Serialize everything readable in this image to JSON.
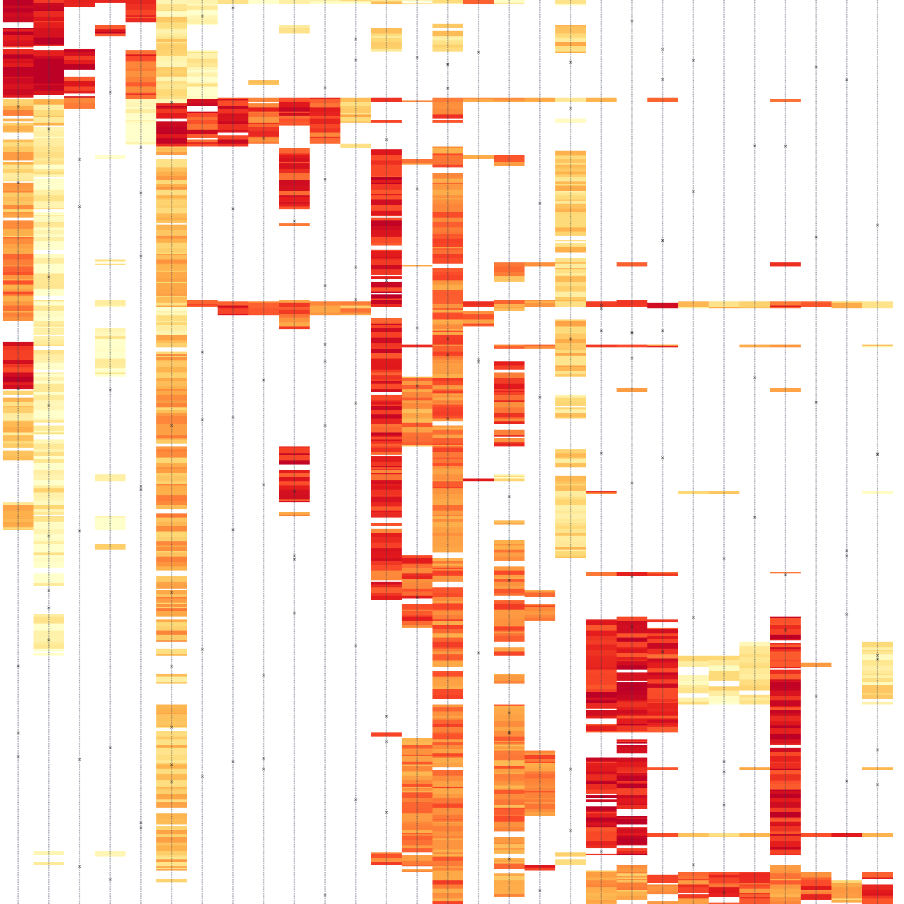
{
  "chart_data": {
    "type": "heatmap",
    "title": "",
    "xlabel": "",
    "ylabel": "",
    "legend": "none",
    "grid": false,
    "n_columns": 29,
    "n_rows": 648,
    "colormap": [
      "#ffffcc",
      "#ffeda0",
      "#fed976",
      "#feb24c",
      "#fd8d3c",
      "#fc4e2a",
      "#e31a1c",
      "#bd0026"
    ],
    "value_range": [
      0,
      1
    ],
    "empty_cell": "white",
    "column_line": "coverage line with x markers",
    "columns": [
      {
        "index": 1,
        "segments": [
          [
            0,
            68,
            0.92
          ],
          [
            70,
            140,
            0.95
          ],
          [
            142,
            180,
            0.45
          ],
          [
            180,
            190,
            0.5
          ],
          [
            196,
            230,
            0.35
          ],
          [
            232,
            260,
            0.3
          ],
          [
            262,
            340,
            0.45
          ],
          [
            340,
            460,
            0.55
          ],
          [
            490,
            560,
            0.85
          ],
          [
            560,
            660,
            0.3
          ],
          [
            720,
            760,
            0.35
          ]
        ]
      },
      {
        "index": 2,
        "segments": [
          [
            0,
            70,
            0.93
          ],
          [
            70,
            140,
            0.96
          ],
          [
            142,
            180,
            0.3
          ],
          [
            180,
            300,
            0.08
          ],
          [
            300,
            460,
            0.05
          ],
          [
            460,
            520,
            0.12
          ],
          [
            520,
            540,
            0.04
          ],
          [
            540,
            620,
            0.06
          ],
          [
            620,
            700,
            0.1
          ],
          [
            700,
            740,
            0.2
          ],
          [
            740,
            840,
            0.06
          ],
          [
            880,
            940,
            0.06
          ],
          [
            1220,
            1240,
            0.15
          ]
        ]
      },
      {
        "index": 3,
        "segments": [
          [
            0,
            10,
            0.9
          ],
          [
            70,
            100,
            0.88
          ],
          [
            110,
            140,
            0.82
          ],
          [
            140,
            156,
            0.6
          ]
        ]
      },
      {
        "index": 4,
        "segments": [
          [
            0,
            4,
            0.8
          ],
          [
            36,
            52,
            0.85
          ],
          [
            222,
            228,
            0.1
          ],
          [
            372,
            380,
            0.12
          ],
          [
            430,
            440,
            0.08
          ],
          [
            470,
            540,
            0.06
          ],
          [
            680,
            690,
            0.04
          ],
          [
            740,
            760,
            0.06
          ],
          [
            780,
            790,
            0.3
          ],
          [
            1220,
            1228,
            0.06
          ]
        ]
      },
      {
        "index": 5,
        "segments": [
          [
            0,
            32,
            0.7
          ],
          [
            72,
            142,
            0.72
          ],
          [
            142,
            208,
            0.04
          ]
        ]
      },
      {
        "index": 6,
        "segments": [
          [
            0,
            148,
            0.2
          ],
          [
            148,
            210,
            0.93
          ],
          [
            210,
            440,
            0.38
          ],
          [
            440,
            480,
            0.15
          ],
          [
            480,
            920,
            0.45
          ],
          [
            930,
            940,
            0.3
          ],
          [
            966,
            980,
            0.25
          ],
          [
            1010,
            1265,
            0.35
          ]
        ]
      },
      {
        "index": 7,
        "segments": [
          [
            0,
            36,
            0.12
          ],
          [
            72,
            142,
            0.08
          ],
          [
            142,
            210,
            0.8
          ],
          [
            430,
            440,
            0.65
          ]
        ]
      },
      {
        "index": 8,
        "segments": [
          [
            0,
            6,
            0.15
          ],
          [
            140,
            210,
            0.85
          ],
          [
            432,
            452,
            0.75
          ]
        ]
      },
      {
        "index": 9,
        "segments": [
          [
            0,
            6,
            0.12
          ],
          [
            115,
            122,
            0.3
          ],
          [
            140,
            206,
            0.7
          ],
          [
            432,
            452,
            0.6
          ]
        ]
      },
      {
        "index": 10,
        "segments": [
          [
            0,
            6,
            0.2
          ],
          [
            36,
            48,
            0.15
          ],
          [
            140,
            180,
            0.8
          ],
          [
            212,
            300,
            0.78
          ],
          [
            320,
            326,
            0.7
          ],
          [
            430,
            472,
            0.62
          ],
          [
            640,
            720,
            0.82
          ],
          [
            734,
            740,
            0.6
          ]
        ]
      },
      {
        "index": 11,
        "segments": [
          [
            0,
            6,
            0.1
          ],
          [
            140,
            206,
            0.75
          ],
          [
            432,
            452,
            0.55
          ]
        ]
      },
      {
        "index": 12,
        "segments": [
          [
            0,
            6,
            0.15
          ],
          [
            140,
            176,
            0.3
          ],
          [
            206,
            212,
            0.4
          ],
          [
            432,
            452,
            0.5
          ]
        ]
      },
      {
        "index": 13,
        "segments": [
          [
            0,
            6,
            0.3
          ],
          [
            40,
            74,
            0.3
          ],
          [
            140,
            146,
            0.65
          ],
          [
            170,
            176,
            0.7
          ],
          [
            210,
            440,
            0.85
          ],
          [
            456,
            640,
            0.8
          ],
          [
            640,
            860,
            0.75
          ],
          [
            1050,
            1056,
            0.6
          ],
          [
            1222,
            1240,
            0.7
          ]
        ]
      },
      {
        "index": 14,
        "segments": [
          [
            0,
            6,
            0.1
          ],
          [
            140,
            146,
            0.6
          ],
          [
            228,
            236,
            0.7
          ],
          [
            380,
            382,
            0.6
          ],
          [
            494,
            498,
            0.7
          ],
          [
            540,
            640,
            0.55
          ],
          [
            796,
            900,
            0.7
          ],
          [
            1050,
            1250,
            0.55
          ]
        ]
      },
      {
        "index": 15,
        "segments": [
          [
            0,
            6,
            0.2
          ],
          [
            34,
            74,
            0.25
          ],
          [
            140,
            176,
            0.65
          ],
          [
            210,
            1296,
            0.6
          ]
        ]
      },
      {
        "index": 16,
        "segments": [
          [
            0,
            6,
            0.5
          ],
          [
            140,
            146,
            0.45
          ],
          [
            222,
            228,
            0.5
          ],
          [
            432,
            468,
            0.65
          ],
          [
            686,
            690,
            0.85
          ]
        ]
      },
      {
        "index": 17,
        "segments": [
          [
            0,
            6,
            0.1
          ],
          [
            140,
            146,
            0.45
          ],
          [
            222,
            238,
            0.6
          ],
          [
            376,
            404,
            0.5
          ],
          [
            430,
            446,
            0.55
          ],
          [
            494,
            500,
            0.7
          ],
          [
            518,
            640,
            0.72
          ],
          [
            680,
            690,
            0.15
          ],
          [
            746,
            752,
            0.5
          ],
          [
            770,
            940,
            0.6
          ],
          [
            966,
            980,
            0.5
          ],
          [
            1010,
            1225,
            0.55
          ],
          [
            1230,
            1290,
            0.5
          ]
        ]
      },
      {
        "index": 18,
        "segments": [
          [
            140,
            146,
            0.45
          ],
          [
            376,
            382,
            0.45
          ],
          [
            430,
            440,
            0.5
          ],
          [
            494,
            500,
            0.6
          ],
          [
            558,
            562,
            0.8
          ],
          [
            846,
            890,
            0.6
          ],
          [
            1076,
            1170,
            0.6
          ],
          [
            1240,
            1248,
            0.7
          ]
        ]
      },
      {
        "index": 19,
        "segments": [
          [
            0,
            8,
            0.1
          ],
          [
            36,
            76,
            0.3
          ],
          [
            140,
            146,
            0.2
          ],
          [
            170,
            176,
            0.2
          ],
          [
            210,
            440,
            0.28
          ],
          [
            458,
            540,
            0.32
          ],
          [
            566,
            600,
            0.25
          ],
          [
            644,
            670,
            0.3
          ],
          [
            682,
            800,
            0.25
          ],
          [
            1222,
            1240,
            0.35
          ]
        ]
      },
      {
        "index": 20,
        "segments": [
          [
            140,
            146,
            0.55
          ],
          [
            432,
            440,
            0.6
          ],
          [
            494,
            498,
            0.65
          ],
          [
            704,
            708,
            0.7
          ],
          [
            820,
            826,
            0.7
          ],
          [
            888,
            1050,
            0.85
          ],
          [
            1086,
            1225,
            0.85
          ],
          [
            1248,
            1296,
            0.5
          ]
        ]
      },
      {
        "index": 21,
        "segments": [
          [
            140,
            146,
            0.65
          ],
          [
            376,
            382,
            0.6
          ],
          [
            430,
            440,
            0.65
          ],
          [
            494,
            498,
            0.7
          ],
          [
            556,
            562,
            0.65
          ],
          [
            820,
            826,
            0.7
          ],
          [
            884,
            1050,
            0.85
          ],
          [
            1060,
            1225,
            0.9
          ],
          [
            1240,
            1290,
            0.5
          ]
        ]
      },
      {
        "index": 22,
        "segments": [
          [
            140,
            146,
            0.6
          ],
          [
            432,
            442,
            0.8
          ],
          [
            494,
            498,
            0.7
          ],
          [
            820,
            826,
            0.7
          ],
          [
            888,
            1050,
            0.8
          ],
          [
            1100,
            1104,
            0.8
          ],
          [
            1194,
            1200,
            0.7
          ],
          [
            1246,
            1296,
            0.65
          ]
        ]
      },
      {
        "index": 23,
        "segments": [
          [
            432,
            442,
            0.25
          ],
          [
            704,
            708,
            0.15
          ],
          [
            940,
            1010,
            0.15
          ],
          [
            1194,
            1200,
            0.3
          ],
          [
            1250,
            1296,
            0.65
          ]
        ]
      },
      {
        "index": 24,
        "segments": [
          [
            432,
            442,
            0.3
          ],
          [
            704,
            708,
            0.2
          ],
          [
            940,
            1010,
            0.15
          ],
          [
            1194,
            1200,
            0.3
          ],
          [
            1250,
            1296,
            0.7
          ]
        ]
      },
      {
        "index": 25,
        "segments": [
          [
            432,
            442,
            0.3
          ],
          [
            494,
            498,
            0.3
          ],
          [
            920,
            1010,
            0.22
          ],
          [
            1100,
            1104,
            0.4
          ],
          [
            1194,
            1200,
            0.4
          ],
          [
            1250,
            1296,
            0.65
          ]
        ]
      },
      {
        "index": 26,
        "segments": [
          [
            140,
            146,
            0.65
          ],
          [
            376,
            382,
            0.65
          ],
          [
            432,
            442,
            0.75
          ],
          [
            494,
            498,
            0.7
          ],
          [
            556,
            562,
            0.65
          ],
          [
            820,
            826,
            0.7
          ],
          [
            884,
            1225,
            0.85
          ],
          [
            1240,
            1296,
            0.55
          ]
        ]
      },
      {
        "index": 27,
        "segments": [
          [
            432,
            442,
            0.8
          ],
          [
            950,
            956,
            0.65
          ],
          [
            1194,
            1200,
            0.8
          ],
          [
            1250,
            1290,
            0.7
          ]
        ]
      },
      {
        "index": 28,
        "segments": [
          [
            432,
            442,
            0.3
          ],
          [
            1194,
            1200,
            0.7
          ],
          [
            1262,
            1296,
            0.4
          ]
        ]
      },
      {
        "index": 29,
        "segments": [
          [
            432,
            442,
            0.15
          ],
          [
            494,
            498,
            0.2
          ],
          [
            704,
            708,
            0.15
          ],
          [
            920,
            1010,
            0.2
          ],
          [
            1100,
            1104,
            0.3
          ],
          [
            1194,
            1200,
            0.3
          ],
          [
            1250,
            1296,
            0.75
          ]
        ]
      }
    ]
  }
}
